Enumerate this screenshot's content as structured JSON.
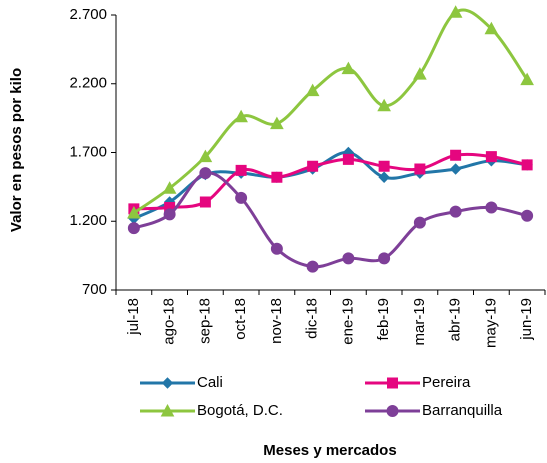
{
  "chart_data": {
    "type": "line",
    "x_label": "Meses  y mercados",
    "y_label": "Valor en pesos por kilo",
    "categories": [
      "jul-18",
      "ago-18",
      "sep-18",
      "oct-18",
      "nov-18",
      "dic-18",
      "ene-19",
      "feb-19",
      "mar-19",
      "abr-19",
      "may-19",
      "jun-19"
    ],
    "series": [
      {
        "name": "Cali",
        "color": "#2276a8",
        "marker": "diamond",
        "values": [
          1220,
          1340,
          1540,
          1550,
          1520,
          1580,
          1700,
          1520,
          1550,
          1580,
          1640,
          1610
        ]
      },
      {
        "name": "Pereira",
        "color": "#e5067f",
        "marker": "square",
        "values": [
          1290,
          1300,
          1340,
          1570,
          1520,
          1600,
          1650,
          1600,
          1580,
          1680,
          1670,
          1610
        ]
      },
      {
        "name": "Bogotá, D.C.",
        "color": "#8dc63f",
        "marker": "triangle",
        "values": [
          1260,
          1440,
          1670,
          1960,
          1910,
          2150,
          2310,
          2040,
          2270,
          2720,
          2600,
          2230
        ]
      },
      {
        "name": "Barranquilla",
        "color": "#7e3f98",
        "marker": "circle",
        "values": [
          1150,
          1250,
          1550,
          1370,
          1000,
          870,
          930,
          930,
          1190,
          1270,
          1300,
          1240
        ]
      }
    ],
    "ylim": [
      700,
      2700
    ],
    "yticks": [
      {
        "value": 700,
        "label": "700"
      },
      {
        "value": 1200,
        "label": "1.200"
      },
      {
        "value": 1700,
        "label": "1.700"
      },
      {
        "value": 2200,
        "label": "2.200"
      },
      {
        "value": 2700,
        "label": "2.700"
      }
    ],
    "legend": "bottom"
  }
}
